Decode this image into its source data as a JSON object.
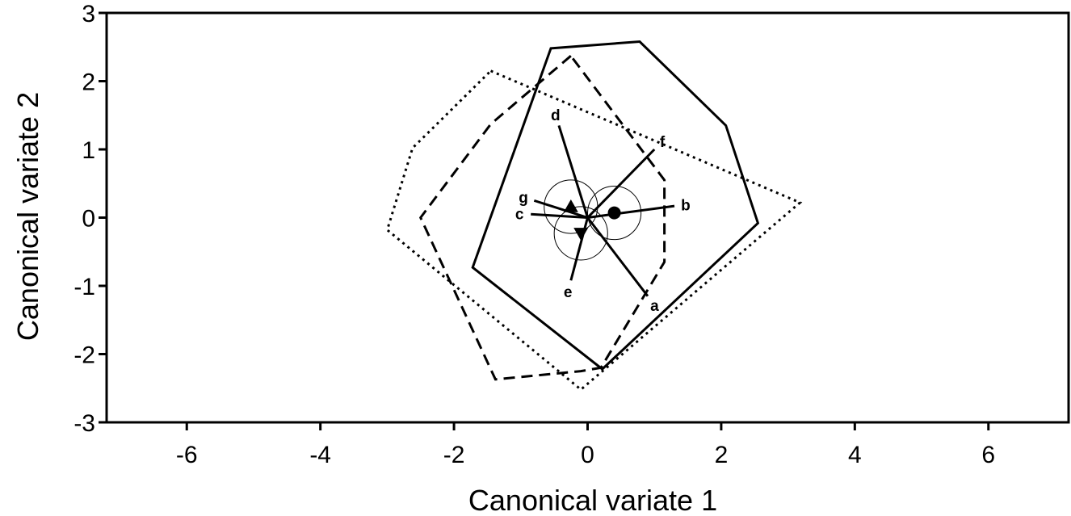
{
  "chart_data": {
    "type": "scatter",
    "xlabel": "Canonical variate 1",
    "ylabel": "Canonical variate 2",
    "xlim": [
      -7.2,
      7.2
    ],
    "ylim": [
      -3,
      3
    ],
    "xticks": [
      -6,
      -4,
      -2,
      0,
      2,
      4,
      6
    ],
    "yticks": [
      -3,
      -2,
      -1,
      0,
      1,
      2,
      3
    ],
    "grid": false,
    "groups": [
      {
        "marker": "circle",
        "centroid": [
          0.4,
          0.07
        ],
        "confidence_radius": 0.4,
        "hull_style": "solid",
        "hull": [
          [
            -0.55,
            2.48
          ],
          [
            0.78,
            2.58
          ],
          [
            2.07,
            1.35
          ],
          [
            2.55,
            -0.08
          ],
          [
            0.22,
            -2.22
          ],
          [
            -1.72,
            -0.73
          ]
        ]
      },
      {
        "marker": "triangle-down",
        "centroid": [
          -0.1,
          -0.23
        ],
        "confidence_radius": 0.4,
        "hull_style": "dashed",
        "hull": [
          [
            -0.25,
            2.37
          ],
          [
            -1.45,
            1.37
          ],
          [
            -2.5,
            0.0
          ],
          [
            -1.38,
            -2.37
          ],
          [
            -0.1,
            -2.25
          ],
          [
            0.2,
            -2.2
          ],
          [
            1.15,
            -0.65
          ],
          [
            1.15,
            0.55
          ]
        ]
      },
      {
        "marker": "triangle-up",
        "centroid": [
          -0.25,
          0.16
        ],
        "confidence_radius": 0.4,
        "hull_style": "dotted",
        "hull": [
          [
            -1.45,
            2.15
          ],
          [
            3.18,
            0.22
          ],
          [
            -0.1,
            -2.52
          ],
          [
            -3.0,
            -0.18
          ],
          [
            -2.62,
            1.02
          ]
        ]
      }
    ],
    "vectors": [
      {
        "label": "a",
        "end": [
          0.9,
          -1.15
        ]
      },
      {
        "label": "b",
        "end": [
          1.3,
          0.17
        ]
      },
      {
        "label": "c",
        "end": [
          -0.85,
          0.05
        ]
      },
      {
        "label": "d",
        "end": [
          -0.43,
          1.35
        ]
      },
      {
        "label": "e",
        "end": [
          -0.25,
          -0.92
        ]
      },
      {
        "label": "f",
        "end": [
          1.0,
          1.0
        ]
      },
      {
        "label": "g",
        "end": [
          -0.8,
          0.25
        ]
      }
    ]
  }
}
